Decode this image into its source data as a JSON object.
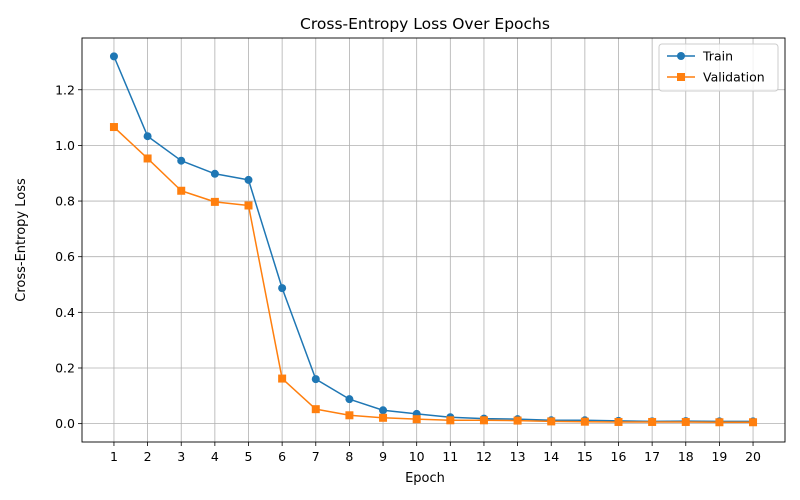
{
  "chart_data": {
    "type": "line",
    "title": "Cross-Entropy Loss Over Epochs",
    "xlabel": "Epoch",
    "ylabel": "Cross-Entropy Loss",
    "x": [
      1,
      2,
      3,
      4,
      5,
      6,
      7,
      8,
      9,
      10,
      11,
      12,
      13,
      14,
      15,
      16,
      17,
      18,
      19,
      20
    ],
    "xlim": [
      0.05,
      20.95
    ],
    "ylim": [
      -0.066,
      1.386
    ],
    "yticks": [
      0.0,
      0.2,
      0.4,
      0.6,
      0.8,
      1.0,
      1.2
    ],
    "ytick_labels": [
      "0.0",
      "0.2",
      "0.4",
      "0.6",
      "0.8",
      "1.0",
      "1.2"
    ],
    "grid": true,
    "legend_position": "top-right",
    "series": [
      {
        "name": "Train",
        "color": "#1f77b4",
        "marker": "circle",
        "values": [
          1.32,
          1.033,
          0.945,
          0.898,
          0.876,
          0.487,
          0.16,
          0.088,
          0.048,
          0.035,
          0.023,
          0.018,
          0.016,
          0.012,
          0.012,
          0.01,
          0.008,
          0.009,
          0.008,
          0.008
        ]
      },
      {
        "name": "Validation",
        "color": "#ff7f0e",
        "marker": "square",
        "values": [
          1.066,
          0.953,
          0.837,
          0.797,
          0.784,
          0.162,
          0.052,
          0.03,
          0.021,
          0.016,
          0.012,
          0.012,
          0.011,
          0.008,
          0.007,
          0.006,
          0.006,
          0.006,
          0.005,
          0.005
        ]
      }
    ]
  }
}
